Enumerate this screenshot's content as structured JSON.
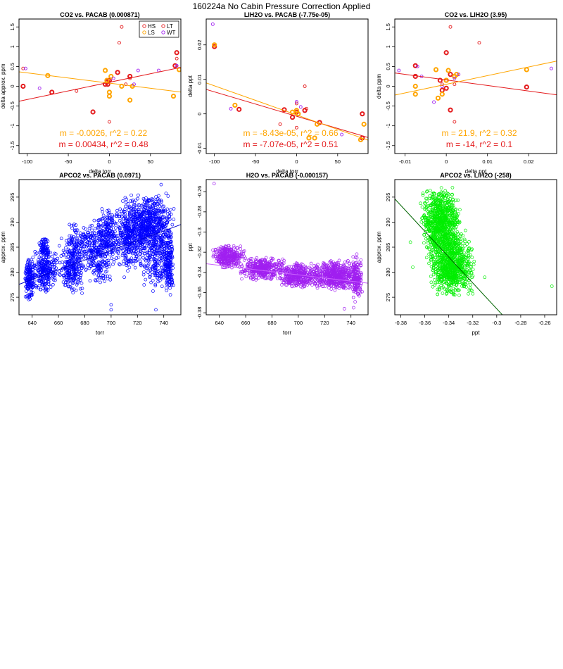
{
  "page_title": "160224a   No Cabin Pressure Correction Applied",
  "colors": {
    "HS": "#e41a1c",
    "LS": "#ffa500",
    "LT": "#e41a1c",
    "WT": "#a020f0"
  },
  "legend": [
    {
      "label": "HS",
      "color": "#e41a1c"
    },
    {
      "label": "LS",
      "color": "#ffa500"
    },
    {
      "label": "LT",
      "color": "#e41a1c"
    },
    {
      "label": "WT",
      "color": "#a020f0"
    }
  ],
  "chart_data": [
    {
      "type": "scatter",
      "title": "CO2 vs. PACAB (0.000871)",
      "xlabel": "delta torr",
      "ylabel": "delta approx. ppm",
      "xlim": [
        -110,
        87
      ],
      "ylim": [
        -1.7,
        1.7
      ],
      "xticks": [
        -100,
        -50,
        0,
        50
      ],
      "yticks": [
        -1.5,
        -1.0,
        -0.5,
        0.0,
        0.5,
        1.0,
        1.5
      ],
      "legend_position": "top-right",
      "series": [
        {
          "name": "HS",
          "color": "#e41a1c",
          "bold": true,
          "points": [
            [
              -105,
              0.0
            ],
            [
              -70,
              -0.15
            ],
            [
              -20,
              -0.65
            ],
            [
              -5,
              0.05
            ],
            [
              -2,
              0.12
            ],
            [
              0,
              0.15
            ],
            [
              10,
              0.35
            ],
            [
              25,
              0.25
            ],
            [
              80,
              0.52
            ],
            [
              82,
              0.85
            ],
            [
              -2,
              0.05
            ]
          ]
        },
        {
          "name": "LS",
          "color": "#ffa500",
          "bold": true,
          "points": [
            [
              -75,
              0.27
            ],
            [
              -5,
              0.4
            ],
            [
              0,
              -0.15
            ],
            [
              0,
              -0.25
            ],
            [
              2,
              0.25
            ],
            [
              15,
              0.0
            ],
            [
              25,
              -0.35
            ],
            [
              28,
              0.0
            ],
            [
              78,
              -0.25
            ],
            [
              85,
              0.42
            ],
            [
              -3,
              0.15
            ]
          ]
        },
        {
          "name": "LT",
          "color": "#e41a1c",
          "bold": false,
          "points": [
            [
              -105,
              0.45
            ],
            [
              -40,
              -0.12
            ],
            [
              0,
              -0.9
            ],
            [
              12,
              1.1
            ],
            [
              15,
              1.5
            ],
            [
              20,
              0.05
            ],
            [
              25,
              0.2
            ],
            [
              82,
              0.7
            ]
          ]
        },
        {
          "name": "WT",
          "color": "#a020f0",
          "bold": false,
          "points": [
            [
              -102,
              0.45
            ],
            [
              -85,
              -0.05
            ],
            [
              5,
              0.2
            ],
            [
              30,
              0.05
            ],
            [
              35,
              0.4
            ],
            [
              60,
              0.4
            ],
            [
              82,
              0.52
            ]
          ]
        }
      ],
      "fits": [
        {
          "color": "#e41a1c",
          "slope": 0.00434,
          "intercept": 0.1,
          "label": "m = 0.00434, r^2 = 0.48"
        },
        {
          "color": "#ffa500",
          "slope": -0.0026,
          "intercept": 0.08,
          "label": "m = -0.0026, r^2 = 0.22"
        }
      ]
    },
    {
      "type": "scatter",
      "title": "LIH2O vs. PACAB (-7.75e-05)",
      "xlabel": "delta torr",
      "ylabel": "delta ppt",
      "xlim": [
        -110,
        87
      ],
      "ylim": [
        -0.0115,
        0.0275
      ],
      "xticks": [
        -100,
        -50,
        0,
        50
      ],
      "yticks": [
        -0.01,
        0.0,
        0.01,
        0.02
      ],
      "series": [
        {
          "name": "HS",
          "color": "#e41a1c",
          "bold": true,
          "points": [
            [
              -100,
              0.0195
            ],
            [
              -70,
              0.0013
            ],
            [
              -15,
              0.0012
            ],
            [
              -5,
              -0.001
            ],
            [
              0,
              0.0005
            ],
            [
              10,
              0.001
            ],
            [
              28,
              -0.0025
            ],
            [
              80,
              0.0
            ],
            [
              80,
              -0.007
            ]
          ]
        },
        {
          "name": "LS",
          "color": "#ffa500",
          "bold": true,
          "points": [
            [
              -100,
              0.02
            ],
            [
              -75,
              0.0025
            ],
            [
              -5,
              0.0005
            ],
            [
              0,
              0.001
            ],
            [
              2,
              0.0
            ],
            [
              15,
              -0.007
            ],
            [
              22,
              -0.007
            ],
            [
              25,
              -0.003
            ],
            [
              82,
              -0.003
            ],
            [
              78,
              -0.0075
            ]
          ]
        },
        {
          "name": "LT",
          "color": "#e41a1c",
          "bold": false,
          "points": [
            [
              -20,
              -0.003
            ],
            [
              0,
              -0.004
            ],
            [
              10,
              0.008
            ],
            [
              12,
              0.0015
            ],
            [
              0,
              0.003
            ]
          ]
        },
        {
          "name": "WT",
          "color": "#a020f0",
          "bold": false,
          "points": [
            [
              -102,
              0.026
            ],
            [
              -80,
              0.0015
            ],
            [
              5,
              0.002
            ],
            [
              55,
              -0.006
            ],
            [
              0,
              0.0035
            ]
          ]
        }
      ],
      "fits": [
        {
          "color": "#e41a1c",
          "slope": -7.07e-05,
          "intercept": -0.0007,
          "label": "m = -7.07e-05, r^2 = 0.51"
        },
        {
          "color": "#ffa500",
          "slope": -8.43e-05,
          "intercept": -0.0003,
          "label": "m = -8.43e-05, r^2 = 0.66"
        }
      ]
    },
    {
      "type": "scatter",
      "title": "CO2 vs. LIH2O (3.95)",
      "xlabel": "delta ppt",
      "ylabel": "delta ppm",
      "xlim": [
        -0.0125,
        0.0268
      ],
      "ylim": [
        -1.7,
        1.7
      ],
      "xticks": [
        -0.01,
        0.0,
        0.01,
        0.02
      ],
      "yticks": [
        -1.5,
        -1.0,
        -0.5,
        0.0,
        0.5,
        1.0,
        1.5
      ],
      "series": [
        {
          "name": "HS",
          "color": "#e41a1c",
          "bold": true,
          "points": [
            [
              -0.0075,
              0.52
            ],
            [
              -0.0075,
              0.25
            ],
            [
              -0.0015,
              0.15
            ],
            [
              0.0,
              0.15
            ],
            [
              0.0,
              -0.05
            ],
            [
              0.0,
              0.85
            ],
            [
              0.001,
              0.3
            ],
            [
              0.001,
              -0.6
            ],
            [
              -0.001,
              -0.1
            ],
            [
              0.0195,
              -0.02
            ]
          ]
        },
        {
          "name": "LS",
          "color": "#ffa500",
          "bold": true,
          "points": [
            [
              -0.0075,
              0.0
            ],
            [
              -0.0075,
              -0.2
            ],
            [
              -0.0025,
              0.42
            ],
            [
              -0.002,
              -0.3
            ],
            [
              -0.001,
              -0.2
            ],
            [
              0.0005,
              0.4
            ],
            [
              0.002,
              0.25
            ],
            [
              0.0025,
              0.3
            ],
            [
              0.0195,
              0.42
            ],
            [
              0.0,
              0.15
            ]
          ]
        },
        {
          "name": "LT",
          "color": "#e41a1c",
          "bold": false,
          "points": [
            [
              0.001,
              1.5
            ],
            [
              0.002,
              -0.9
            ],
            [
              0.002,
              0.05
            ],
            [
              0.008,
              1.1
            ],
            [
              -0.001,
              0.05
            ]
          ]
        },
        {
          "name": "WT",
          "color": "#a020f0",
          "bold": false,
          "points": [
            [
              -0.0115,
              0.4
            ],
            [
              -0.007,
              0.5
            ],
            [
              -0.006,
              0.25
            ],
            [
              -0.003,
              -0.4
            ],
            [
              -0.001,
              0.0
            ],
            [
              0.002,
              0.2
            ],
            [
              0.003,
              0.3
            ],
            [
              0.0255,
              0.45
            ]
          ]
        }
      ],
      "fits": [
        {
          "color": "#e41a1c",
          "slope": -14,
          "intercept": 0.16,
          "label": "m = -14, r^2 = 0.1"
        },
        {
          "color": "#ffa500",
          "slope": 21.9,
          "intercept": 0.05,
          "label": "m = 21.9, r^2 = 0.32"
        }
      ]
    },
    {
      "type": "scatter",
      "title": "APCO2 vs. PACAB (0.0971)",
      "xlabel": "torr",
      "ylabel": "approx. ppm",
      "xlim": [
        630,
        753
      ],
      "ylim": [
        271.5,
        298.5
      ],
      "xticks": [
        640,
        660,
        680,
        700,
        720,
        740
      ],
      "yticks": [
        275,
        280,
        285,
        290,
        295
      ],
      "color": "#0000ff",
      "fit": {
        "color": "#0000cc",
        "slope": 0.0971,
        "intercept": 216.4
      },
      "cloud": [
        {
          "x": [
            634,
            642
          ],
          "y": [
            274,
            283
          ],
          "n": 160
        },
        {
          "x": [
            640,
            660
          ],
          "y": [
            276,
            285
          ],
          "n": 260
        },
        {
          "x": [
            645,
            653
          ],
          "y": [
            283,
            287
          ],
          "n": 70
        },
        {
          "x": [
            660,
            680
          ],
          "y": [
            275,
            287
          ],
          "n": 260
        },
        {
          "x": [
            665,
            690
          ],
          "y": [
            283,
            290
          ],
          "n": 110
        },
        {
          "x": [
            680,
            702
          ],
          "y": [
            277,
            291
          ],
          "n": 260
        },
        {
          "x": [
            690,
            705
          ],
          "y": [
            283,
            293
          ],
          "n": 140
        },
        {
          "x": [
            700,
            725
          ],
          "y": [
            280,
            294
          ],
          "n": 320
        },
        {
          "x": [
            708,
            748
          ],
          "y": [
            284,
            296
          ],
          "n": 560
        },
        {
          "x": [
            720,
            748
          ],
          "y": [
            276,
            292
          ],
          "n": 320
        },
        {
          "x": [
            740,
            748
          ],
          "y": [
            275,
            289
          ],
          "n": 150
        }
      ],
      "outliers": [
        [
          700,
          272.5
        ],
        [
          700,
          273.5
        ],
        [
          734,
          272.5
        ],
        [
          738,
          297.5
        ],
        [
          710,
          279
        ]
      ]
    },
    {
      "type": "scatter",
      "title": "H2O vs. PACAB (-0.000157)",
      "xlabel": "torr",
      "ylabel": "ppt",
      "xlim": [
        630,
        753
      ],
      "ylim": [
        -0.382,
        -0.248
      ],
      "xticks": [
        640,
        660,
        680,
        700,
        720,
        740
      ],
      "yticks": [
        -0.38,
        -0.36,
        -0.34,
        -0.32,
        -0.3,
        -0.28,
        -0.26
      ],
      "color": "#a020f0",
      "fit": {
        "color": "#cc66ff",
        "slope": -0.000157,
        "intercept": -0.2325
      },
      "cloud": [
        {
          "x": [
            634,
            660
          ],
          "y": [
            -0.336,
            -0.312
          ],
          "n": 320
        },
        {
          "x": [
            655,
            690
          ],
          "y": [
            -0.348,
            -0.325
          ],
          "n": 380
        },
        {
          "x": [
            685,
            715
          ],
          "y": [
            -0.356,
            -0.33
          ],
          "n": 380
        },
        {
          "x": [
            710,
            748
          ],
          "y": [
            -0.358,
            -0.328
          ],
          "n": 600
        },
        {
          "x": [
            740,
            749
          ],
          "y": [
            -0.37,
            -0.32
          ],
          "n": 140
        }
      ],
      "outliers": [
        [
          636,
          -0.252
        ],
        [
          735,
          -0.376
        ],
        [
          742,
          -0.375
        ]
      ]
    },
    {
      "type": "scatter",
      "title": "APCO2 vs. LIH2O (-258)",
      "xlabel": "ppt",
      "ylabel": "approx. ppm",
      "xlim": [
        -0.385,
        -0.25
      ],
      "ylim": [
        271.5,
        298.5
      ],
      "xticks": [
        -0.38,
        -0.36,
        -0.34,
        -0.32,
        -0.3,
        -0.28,
        -0.26
      ],
      "yticks": [
        275,
        280,
        285,
        290,
        295
      ],
      "color": "#00ee00",
      "fit": {
        "color": "#006400",
        "slope": -258,
        "intercept": 195.3
      },
      "cloud": [
        {
          "x": [
            -0.364,
            -0.33
          ],
          "y": [
            284,
            297
          ],
          "n": 700
        },
        {
          "x": [
            -0.356,
            -0.318
          ],
          "y": [
            275,
            287
          ],
          "n": 700
        },
        {
          "x": [
            -0.36,
            -0.325
          ],
          "y": [
            279,
            292
          ],
          "n": 300
        }
      ],
      "outliers": [
        [
          -0.254,
          277.2
        ],
        [
          -0.372,
          286
        ],
        [
          -0.37,
          281
        ],
        [
          -0.31,
          279
        ]
      ]
    }
  ]
}
